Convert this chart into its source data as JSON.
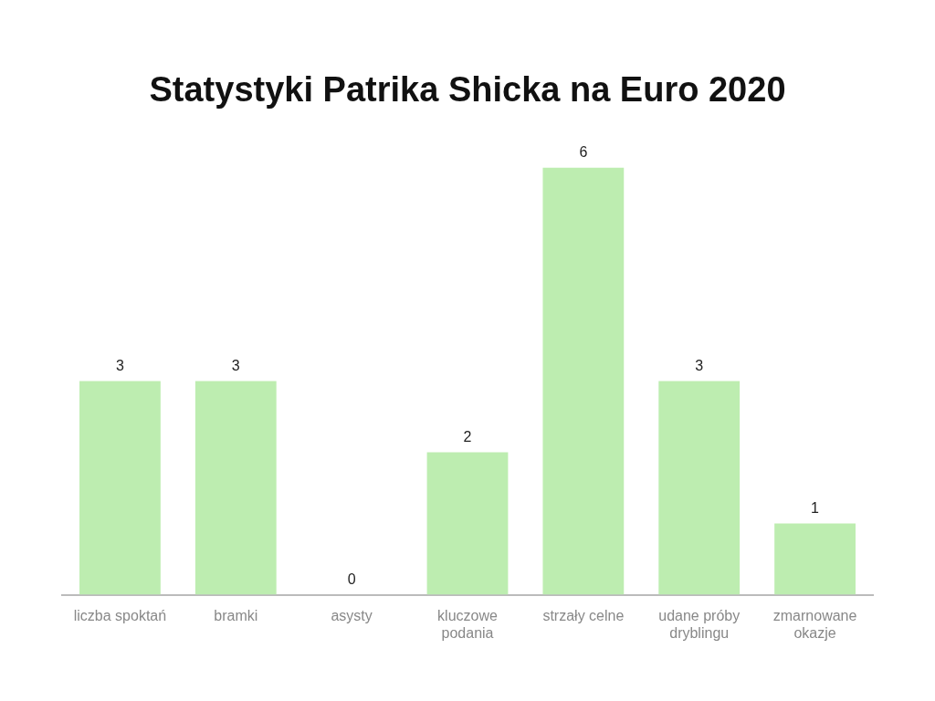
{
  "chart_data": {
    "type": "bar",
    "title": "Statystyki Patrika Shicka na Euro 2020",
    "categories": [
      "liczba spoktań",
      "bramki",
      "asysty",
      "kluczowe podania",
      "strzały celne",
      "udane próby dryblingu",
      "zmarnowane okazje"
    ],
    "values": [
      3,
      3,
      0,
      2,
      6,
      3,
      1
    ],
    "color": "#bdedb0",
    "data_labels": true,
    "grid": false,
    "legend": false
  }
}
